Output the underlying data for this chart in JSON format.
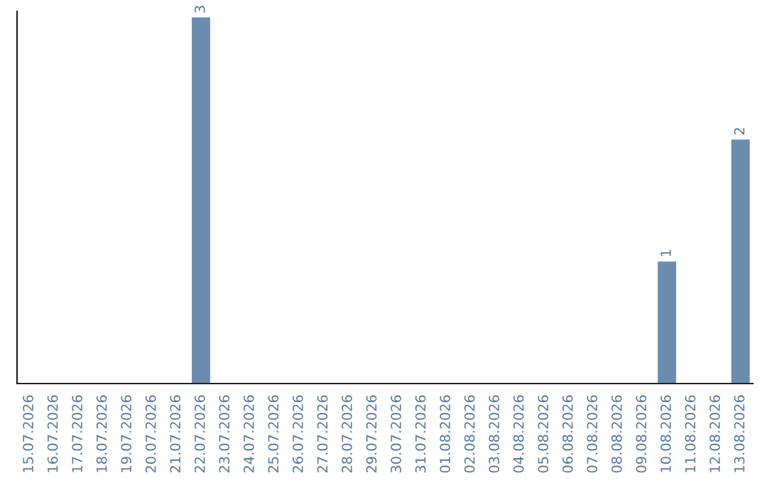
{
  "chart_data": {
    "type": "bar",
    "categories": [
      "15.07.2026",
      "16.07.2026",
      "17.07.2026",
      "18.07.2026",
      "19.07.2026",
      "20.07.2026",
      "21.07.2026",
      "22.07.2026",
      "23.07.2026",
      "24.07.2026",
      "25.07.2026",
      "26.07.2026",
      "27.07.2026",
      "28.07.2026",
      "29.07.2026",
      "30.07.2026",
      "31.07.2026",
      "01.08.2026",
      "02.08.2026",
      "03.08.2026",
      "04.08.2026",
      "05.08.2026",
      "06.08.2026",
      "07.08.2026",
      "08.08.2026",
      "09.08.2026",
      "10.08.2026",
      "11.08.2026",
      "12.08.2026",
      "13.08.2026"
    ],
    "values": [
      0,
      0,
      0,
      0,
      0,
      0,
      0,
      3,
      0,
      0,
      0,
      0,
      0,
      0,
      0,
      0,
      0,
      0,
      0,
      0,
      0,
      0,
      0,
      0,
      0,
      0,
      1,
      0,
      0,
      2
    ],
    "value_labels": [
      null,
      null,
      null,
      null,
      null,
      null,
      null,
      "3",
      null,
      null,
      null,
      null,
      null,
      null,
      null,
      null,
      null,
      null,
      null,
      null,
      null,
      null,
      null,
      null,
      null,
      null,
      "1",
      null,
      null,
      "2"
    ],
    "color": "#6b8cad",
    "ylim": [
      0,
      3.05
    ],
    "tick_labels": "x",
    "grid": false,
    "legend": false
  }
}
